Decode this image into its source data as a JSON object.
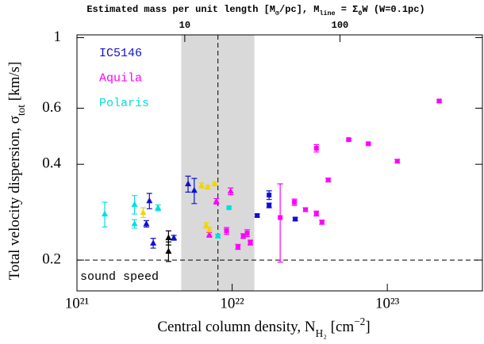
{
  "chart_data": {
    "type": "scatter",
    "top_label": [
      {
        "text": "Estimated mass per unit length  [M"
      },
      {
        "text": "⊙",
        "sub": true
      },
      {
        "text": "/pc], M"
      },
      {
        "text": "line",
        "sub": true
      },
      {
        "text": " = Σ"
      },
      {
        "text": "0",
        "sub": true
      },
      {
        "text": "W (W=0.1pc)"
      }
    ],
    "xlabel": [
      {
        "text": "Central column density, N"
      },
      {
        "text": "H₂",
        "sub": true
      },
      {
        "text": " [cm"
      },
      {
        "text": "−2",
        "sup": true
      },
      {
        "text": "]"
      }
    ],
    "ylabel": [
      {
        "text": "Total velocity dispersion, σ"
      },
      {
        "text": "tot",
        "sub": true
      },
      {
        "text": " [km/s]"
      }
    ],
    "log_x": true,
    "log_y": true,
    "xlim": [
      1e+21,
      4.1e+23
    ],
    "xticks": [
      {
        "value": 1e+21,
        "label": "10²¹"
      },
      {
        "value": 1e+22,
        "label": "10²²"
      },
      {
        "value": 1e+23,
        "label": "10²³"
      }
    ],
    "x2lim": [
      2.02,
      828
    ],
    "x2ticks": [
      10,
      100
    ],
    "ylim": [
      0.16,
      1.02
    ],
    "yticks": [
      0.2,
      0.4,
      0.6,
      1
    ],
    "band": [
      4.7e+21,
      1.39e+22
    ],
    "band_color": "#d9d9d9",
    "vline": 8.1e+21,
    "hline": 0.2,
    "hline_label": "sound speed",
    "series": [
      {
        "name": "IC5146",
        "color": "#1010d0",
        "x": [
          2.93e+21,
          2.8e+21,
          3.1e+21,
          4.21e+21,
          5.2e+21,
          5.7e+21,
          1.45e+22,
          1.73e+22,
          1.73e+22,
          2.55e+22
        ],
        "values": [
          0.307,
          0.26,
          0.226,
          0.235,
          0.347,
          0.331,
          0.276,
          0.32,
          0.297,
          0.269
        ],
        "errors": [
          0.017,
          0.006,
          0.008,
          0.004,
          0.02,
          0.03,
          0.003,
          0.01,
          0.005,
          0.003
        ],
        "markers": [
          "triangle",
          "triangle",
          "triangle",
          "triangle",
          "triangle",
          "triangle",
          "square",
          "square",
          "square",
          "square"
        ]
      },
      {
        "name": "Aquila",
        "color": "#ff00ff",
        "x": [
          7.91e+21,
          9.78e+21,
          7.13e+21,
          9.2e+21,
          1.09e+22,
          1.18e+22,
          1.25e+22,
          1.31e+22,
          2.04e+22,
          2.52e+22,
          2.97e+22,
          3.49e+22,
          3.79e+22,
          3.49e+22,
          4.16e+22,
          5.64e+22,
          7.55e+22,
          1.16e+23,
          2.16e+23
        ],
        "values": [
          0.306,
          0.329,
          0.24,
          0.247,
          0.22,
          0.238,
          0.243,
          0.227,
          0.272,
          0.304,
          0.288,
          0.28,
          0.263,
          0.449,
          0.357,
          0.478,
          0.464,
          0.409,
          0.632
        ],
        "errors": [
          0.006,
          0.008,
          0.004,
          0.006,
          0.004,
          0.004,
          0.006,
          0.004,
          0.075,
          0.007,
          0.004,
          0.005,
          0.004,
          0.012,
          0.005,
          0.004,
          0.004,
          0.005,
          0.006
        ],
        "markers": [
          "triangle",
          "triangle",
          "triangle",
          "square",
          "square",
          "square",
          "square",
          "square",
          "square",
          "square",
          "square",
          "square",
          "square",
          "square",
          "square",
          "square",
          "square",
          "square",
          "square"
        ]
      },
      {
        "name": "Polaris",
        "color": "#00e0e0",
        "x": [
          1.51e+21,
          2.35e+21,
          2.35e+21,
          3.33e+21,
          9.55e+21,
          8.1e+21
        ],
        "values": [
          0.279,
          0.299,
          0.26,
          0.292,
          0.292,
          0.238
        ],
        "errors": [
          0.025,
          0.02,
          0.008,
          0.006,
          0.002,
          0.003
        ],
        "markers": [
          "triangle",
          "triangle",
          "triangle",
          "triangle",
          "square",
          "square"
        ]
      },
      {
        "color": "#f2d500",
        "x": [
          2.67e+21,
          6.34e+21,
          6.96e+21,
          7.73e+21,
          6.8e+21,
          7.13e+21
        ],
        "values": [
          0.282,
          0.343,
          0.339,
          0.347,
          0.257,
          0.249
        ],
        "errors": [
          0.01,
          0.006,
          0.004,
          0.004,
          0.005,
          0.004
        ],
        "markers": [
          "triangle",
          "triangle",
          "triangle",
          "triangle",
          "triangle",
          "triangle"
        ]
      },
      {
        "color": "#000000",
        "x": [
          3.89e+21,
          3.89e+21
        ],
        "values": [
          0.235,
          0.213
        ],
        "errors": [
          0.012,
          0.015
        ],
        "markers": [
          "triangle",
          "triangle"
        ]
      }
    ]
  }
}
